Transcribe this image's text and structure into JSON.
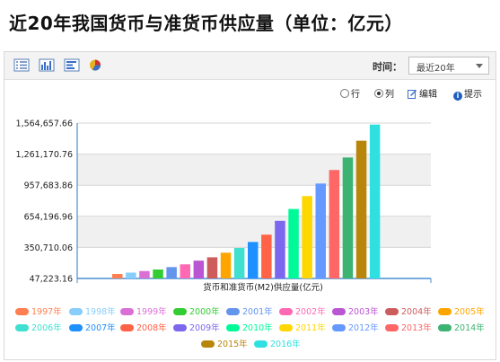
{
  "page_title": "近20年我国货币与准货币供应量（单位：亿元）",
  "toolbar": {
    "icons": [
      "table-icon",
      "bar-chart-icon",
      "horizontal-bar-icon",
      "pie-chart-icon"
    ],
    "time_label": "时间：",
    "time_value": "最近20年",
    "option_row": "行",
    "option_col": "列",
    "edit_label": "编辑",
    "hint_label": "提示"
  },
  "chart_data": {
    "type": "bar",
    "title": "",
    "xlabel": "货币和准货币(M2)供应量(亿元)",
    "ylabel": "",
    "ylim": [
      47223.16,
      1564657.66
    ],
    "y_ticks": [
      47223.16,
      350710.06,
      654196.96,
      957683.86,
      1261170.76,
      1564657.66
    ],
    "y_tick_labels": [
      "47,223.16",
      "350,710.06",
      "654,196.96",
      "957,683.86",
      "1,261,170.76",
      "1,564,657.66"
    ],
    "grid": true,
    "legend_position": "bottom",
    "series": [
      {
        "name": "1997年",
        "value": 90995.3,
        "color": "#ff7f50"
      },
      {
        "name": "1998年",
        "value": 104498.5,
        "color": "#87cefa"
      },
      {
        "name": "1999年",
        "value": 119897.9,
        "color": "#da70d6"
      },
      {
        "name": "2000年",
        "value": 134610.3,
        "color": "#32cd32"
      },
      {
        "name": "2001年",
        "value": 158301.9,
        "color": "#6495ed"
      },
      {
        "name": "2002年",
        "value": 185007.0,
        "color": "#ff69b4"
      },
      {
        "name": "2003年",
        "value": 221222.8,
        "color": "#ba55d3"
      },
      {
        "name": "2004年",
        "value": 254107.0,
        "color": "#cd5c5c"
      },
      {
        "name": "2005年",
        "value": 298755.7,
        "color": "#ffa500"
      },
      {
        "name": "2006年",
        "value": 345577.9,
        "color": "#40e0d0"
      },
      {
        "name": "2007年",
        "value": 403442.2,
        "color": "#1e90ff"
      },
      {
        "name": "2008年",
        "value": 475166.6,
        "color": "#ff6347"
      },
      {
        "name": "2009年",
        "value": 610224.5,
        "color": "#7b68ee"
      },
      {
        "name": "2010年",
        "value": 725851.8,
        "color": "#00fa9a"
      },
      {
        "name": "2011年",
        "value": 851590.9,
        "color": "#ffd700"
      },
      {
        "name": "2012年",
        "value": 974148.8,
        "color": "#6699ff"
      },
      {
        "name": "2013年",
        "value": 1106525.0,
        "color": "#ff6666"
      },
      {
        "name": "2014年",
        "value": 1228374.8,
        "color": "#3cb371"
      },
      {
        "name": "2015年",
        "value": 1392278.1,
        "color": "#b8860b"
      },
      {
        "name": "2016年",
        "value": 1550066.7,
        "color": "#30e0e0"
      }
    ]
  }
}
